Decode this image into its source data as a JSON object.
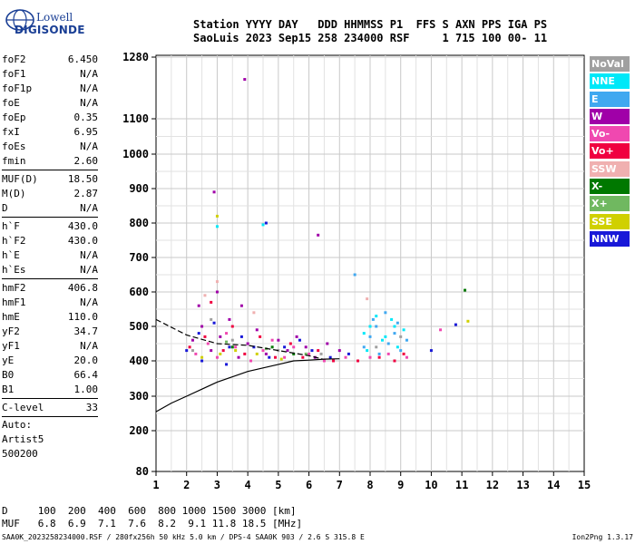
{
  "logo": {
    "line1": "Lowell",
    "line2": "DIGISONDE"
  },
  "header": {
    "line1": "Station YYYY DAY   DDD HHMMSS P1  FFS S AXN PPS IGA PS",
    "line2": "SaoLuis 2023 Sep15 258 234000 RSF     1 715 100 00- 11"
  },
  "params": {
    "group1": [
      {
        "name": "foF2",
        "value": "6.450"
      },
      {
        "name": "foF1",
        "value": "N/A"
      },
      {
        "name": "foF1p",
        "value": "N/A"
      },
      {
        "name": "foE",
        "value": "N/A"
      },
      {
        "name": "foEp",
        "value": "0.35"
      },
      {
        "name": "fxI",
        "value": "6.95"
      },
      {
        "name": "foEs",
        "value": "N/A"
      },
      {
        "name": "fmin",
        "value": "2.60"
      }
    ],
    "group2": [
      {
        "name": "MUF(D)",
        "value": "18.50"
      },
      {
        "name": "M(D)",
        "value": "2.87"
      },
      {
        "name": "D",
        "value": "N/A"
      }
    ],
    "group3": [
      {
        "name": "h`F",
        "value": "430.0"
      },
      {
        "name": "h`F2",
        "value": "430.0"
      },
      {
        "name": "h`E",
        "value": "N/A"
      },
      {
        "name": "h`Es",
        "value": "N/A"
      }
    ],
    "group4": [
      {
        "name": "hmF2",
        "value": "406.8"
      },
      {
        "name": "hmF1",
        "value": "N/A"
      },
      {
        "name": "hmE",
        "value": "110.0"
      },
      {
        "name": "yF2",
        "value": "34.7"
      },
      {
        "name": "yF1",
        "value": "N/A"
      },
      {
        "name": "yE",
        "value": "20.0"
      },
      {
        "name": "B0",
        "value": "66.4"
      },
      {
        "name": "B1",
        "value": "1.00"
      }
    ],
    "group5": [
      {
        "name": "C-level",
        "value": "33"
      }
    ],
    "auto": [
      "Auto:",
      "Artist5",
      "500200"
    ]
  },
  "legend": [
    {
      "label": "NoVal",
      "color": "#a0a0a0"
    },
    {
      "label": "NNE",
      "color": "#00e8f8"
    },
    {
      "label": "E",
      "color": "#40a8f0"
    },
    {
      "label": "W",
      "color": "#a000a8"
    },
    {
      "label": "Vo-",
      "color": "#f048b0"
    },
    {
      "label": "Vo+",
      "color": "#f00040"
    },
    {
      "label": "SSW",
      "color": "#f0b0b0"
    },
    {
      "label": "X-",
      "color": "#007800"
    },
    {
      "label": "X+",
      "color": "#70b860"
    },
    {
      "label": "SSE",
      "color": "#d0d000"
    },
    {
      "label": "NNW",
      "color": "#1818d8"
    }
  ],
  "bottom": {
    "line1": "D     100  200  400  600  800 1000 1500 3000 [km]",
    "line2": "MUF   6.8  6.9  7.1  7.6  8.2  9.1 11.8 18.5 [MHz]"
  },
  "footer": {
    "left": "SAA0K_2023258234000.RSF / 280fx256h 50 kHz 5.0 km / DPS-4 SAA0K 903 / 2.6 S 315.8 E",
    "right": "Ion2Png 1.3.17"
  },
  "chart_data": {
    "type": "scatter",
    "xlim": [
      1,
      15
    ],
    "ylim": [
      200,
      1280
    ],
    "y_scale": "nonlinear (compressed)",
    "x_ticks": [
      "1",
      "2",
      "3",
      "4",
      "5",
      "6",
      "7",
      "8",
      "9",
      "10",
      "11",
      "12",
      "13",
      "14",
      "15"
    ],
    "y_ticks": [
      "80",
      "200",
      "300",
      "400",
      "500",
      "600",
      "700",
      "800",
      "900",
      "1000",
      "1100",
      "1280"
    ],
    "grid": true,
    "series": [
      {
        "name": "NoVal",
        "color": "#a0a0a0",
        "points": [
          [
            2.2,
            430
          ],
          [
            3.5,
            460
          ],
          [
            5.0,
            430
          ],
          [
            6.4,
            420
          ],
          [
            8.2,
            440
          ],
          [
            9.0,
            470
          ],
          [
            2.8,
            520
          ]
        ]
      },
      {
        "name": "NNE",
        "color": "#00e8f8",
        "points": [
          [
            7.8,
            480
          ],
          [
            8.0,
            500
          ],
          [
            8.2,
            530
          ],
          [
            8.4,
            460
          ],
          [
            8.7,
            520
          ],
          [
            8.9,
            440
          ],
          [
            9.1,
            490
          ],
          [
            7.9,
            430
          ],
          [
            8.5,
            470
          ],
          [
            8.8,
            500
          ],
          [
            3.0,
            790
          ],
          [
            4.5,
            795
          ]
        ]
      },
      {
        "name": "E",
        "color": "#40a8f0",
        "points": [
          [
            7.8,
            440
          ],
          [
            8.0,
            470
          ],
          [
            8.2,
            500
          ],
          [
            8.3,
            420
          ],
          [
            8.6,
            450
          ],
          [
            8.8,
            480
          ],
          [
            9.0,
            430
          ],
          [
            9.2,
            460
          ],
          [
            8.1,
            520
          ],
          [
            8.5,
            540
          ],
          [
            8.9,
            510
          ],
          [
            7.5,
            650
          ]
        ]
      },
      {
        "name": "W",
        "color": "#a000a8",
        "points": [
          [
            2.2,
            460
          ],
          [
            2.5,
            500
          ],
          [
            2.8,
            430
          ],
          [
            3.1,
            470
          ],
          [
            3.4,
            520
          ],
          [
            3.7,
            410
          ],
          [
            4.0,
            450
          ],
          [
            4.3,
            490
          ],
          [
            4.6,
            420
          ],
          [
            5.0,
            460
          ],
          [
            5.3,
            430
          ],
          [
            5.6,
            470
          ],
          [
            5.9,
            440
          ],
          [
            6.2,
            410
          ],
          [
            6.6,
            450
          ],
          [
            7.0,
            430
          ],
          [
            2.4,
            560
          ],
          [
            3.0,
            600
          ],
          [
            3.8,
            560
          ],
          [
            2.9,
            890
          ],
          [
            3.9,
            1215
          ],
          [
            6.3,
            765
          ]
        ]
      },
      {
        "name": "Vo-",
        "color": "#f048b0",
        "points": [
          [
            2.3,
            420
          ],
          [
            2.7,
            450
          ],
          [
            3.0,
            410
          ],
          [
            3.3,
            480
          ],
          [
            3.6,
            440
          ],
          [
            4.1,
            400
          ],
          [
            4.5,
            430
          ],
          [
            4.8,
            460
          ],
          [
            5.2,
            410
          ],
          [
            5.5,
            440
          ],
          [
            6.0,
            420
          ],
          [
            6.5,
            400
          ],
          [
            7.2,
            410
          ],
          [
            8.0,
            410
          ],
          [
            8.6,
            420
          ],
          [
            9.2,
            410
          ],
          [
            10.3,
            490
          ]
        ]
      },
      {
        "name": "Vo+",
        "color": "#f00040",
        "points": [
          [
            2.1,
            440
          ],
          [
            2.6,
            470
          ],
          [
            3.2,
            430
          ],
          [
            3.5,
            500
          ],
          [
            3.9,
            420
          ],
          [
            4.4,
            470
          ],
          [
            4.9,
            410
          ],
          [
            5.4,
            450
          ],
          [
            5.8,
            410
          ],
          [
            6.3,
            430
          ],
          [
            6.8,
            400
          ],
          [
            7.6,
            400
          ],
          [
            8.3,
            410
          ],
          [
            8.8,
            400
          ],
          [
            9.1,
            420
          ],
          [
            2.8,
            570
          ]
        ]
      },
      {
        "name": "SSW",
        "color": "#f0b0b0",
        "points": [
          [
            3.0,
            630
          ],
          [
            2.6,
            590
          ],
          [
            4.2,
            540
          ],
          [
            7.9,
            580
          ]
        ]
      },
      {
        "name": "X-",
        "color": "#007800",
        "points": [
          [
            3.5,
            440
          ],
          [
            4.8,
            440
          ],
          [
            5.5,
            420
          ],
          [
            11.1,
            605
          ]
        ]
      },
      {
        "name": "X+",
        "color": "#70b860",
        "points": [
          [
            3.3,
            455
          ],
          [
            4.6,
            435
          ],
          [
            5.9,
            420
          ]
        ]
      },
      {
        "name": "SSE",
        "color": "#d0d000",
        "points": [
          [
            2.5,
            410
          ],
          [
            3.1,
            420
          ],
          [
            3.6,
            430
          ],
          [
            4.3,
            420
          ],
          [
            5.1,
            405
          ],
          [
            3.0,
            820
          ],
          [
            11.2,
            515
          ]
        ]
      },
      {
        "name": "NNW",
        "color": "#1818d8",
        "points": [
          [
            2.0,
            430
          ],
          [
            2.4,
            480
          ],
          [
            2.9,
            510
          ],
          [
            3.4,
            440
          ],
          [
            3.8,
            470
          ],
          [
            4.2,
            440
          ],
          [
            4.7,
            410
          ],
          [
            5.2,
            440
          ],
          [
            5.7,
            460
          ],
          [
            6.1,
            430
          ],
          [
            6.7,
            410
          ],
          [
            7.3,
            420
          ],
          [
            2.5,
            400
          ],
          [
            3.3,
            390
          ],
          [
            4.6,
            800
          ],
          [
            10.0,
            430
          ],
          [
            10.8,
            505
          ]
        ]
      }
    ],
    "lines": [
      {
        "name": "profile",
        "style": "solid",
        "points": [
          [
            1,
            255
          ],
          [
            1.5,
            280
          ],
          [
            2,
            300
          ],
          [
            2.5,
            320
          ],
          [
            3,
            340
          ],
          [
            4,
            370
          ],
          [
            4.5,
            380
          ],
          [
            5,
            390
          ],
          [
            5.5,
            400
          ],
          [
            6,
            402
          ],
          [
            6.5,
            405
          ],
          [
            7,
            406
          ]
        ]
      },
      {
        "name": "virtual-height",
        "style": "dashed",
        "points": [
          [
            1,
            520
          ],
          [
            2,
            475
          ],
          [
            3,
            450
          ],
          [
            4,
            445
          ],
          [
            5,
            430
          ],
          [
            6,
            415
          ],
          [
            6.45,
            405
          ]
        ]
      }
    ]
  }
}
